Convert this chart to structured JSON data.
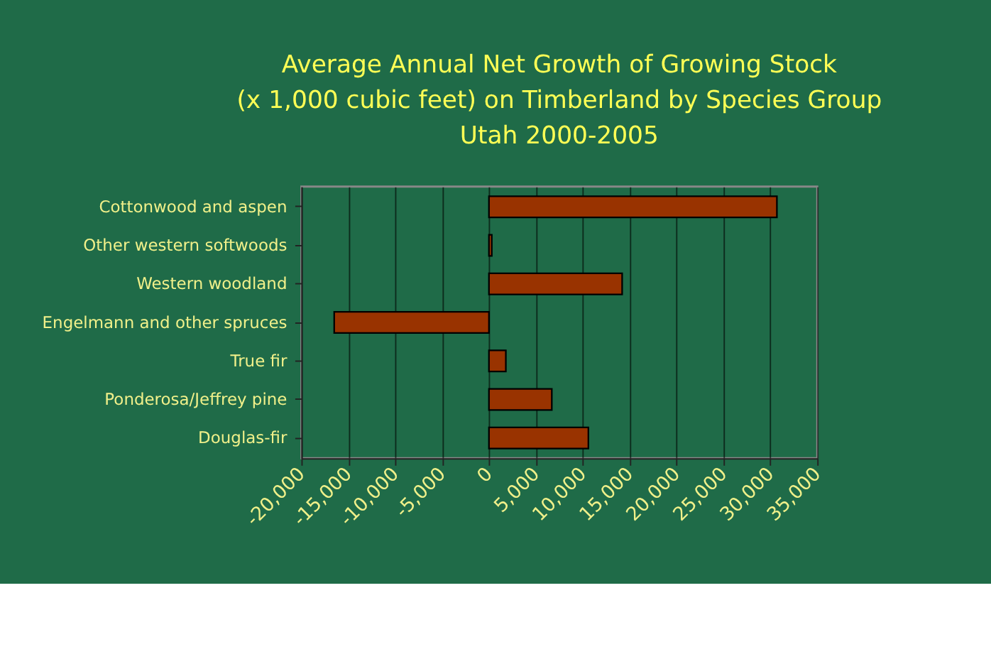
{
  "chart_data": {
    "type": "bar",
    "orientation": "horizontal",
    "title": [
      "Average Annual Net Growth of Growing Stock",
      "(x 1,000 cubic feet) on Timberland by Species Group",
      "Utah 2000-2005"
    ],
    "categories": [
      "Cottonwood and aspen",
      "Other western softwoods",
      "Western woodland",
      "Engelmann and other spruces",
      "True fir",
      "Ponderosa/Jeffrey pine",
      "Douglas-fir"
    ],
    "values": [
      30700,
      300,
      14200,
      -16500,
      1800,
      6700,
      10600
    ],
    "color": "#993300",
    "xlim": [
      -20000,
      35000
    ],
    "xticks": [
      {
        "value": -20000,
        "label": "-20,000"
      },
      {
        "value": -15000,
        "label": "-15,000"
      },
      {
        "value": -10000,
        "label": "-10,000"
      },
      {
        "value": -5000,
        "label": "-5,000"
      },
      0,
      {
        "value": 5000,
        "label": "5,000"
      },
      {
        "value": 10000,
        "label": "10,000"
      },
      {
        "value": 15000,
        "label": "15,000"
      },
      {
        "value": 20000,
        "label": "20,000"
      },
      {
        "value": 25000,
        "label": "25,000"
      },
      {
        "value": 30000,
        "label": "30,000"
      },
      {
        "value": 35000,
        "label": "35,000"
      }
    ],
    "grid": "x"
  }
}
